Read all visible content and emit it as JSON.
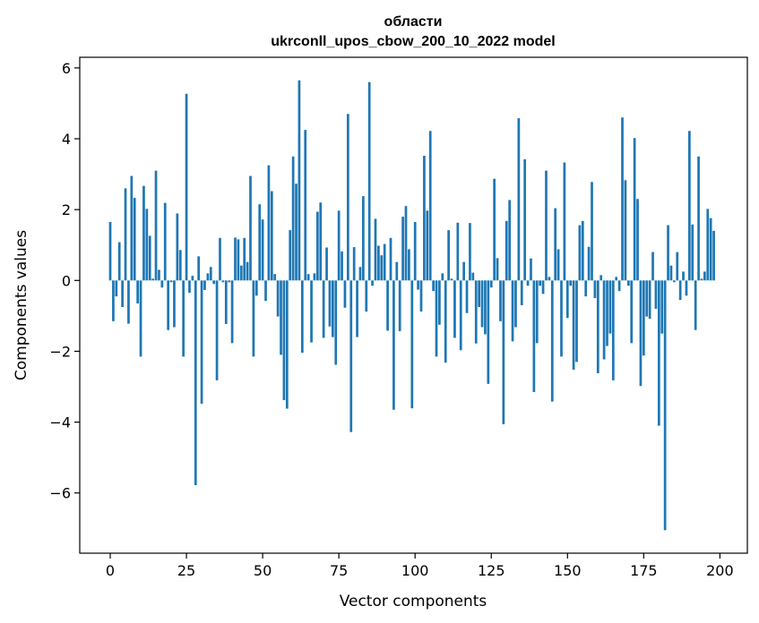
{
  "chart_data": {
    "type": "bar",
    "title_line1": "области",
    "title_line2": "ukrconll_upos_cbow_200_10_2022 model",
    "xlabel": "Vector components",
    "ylabel": "Components values",
    "xlim": [
      -10,
      209
    ],
    "ylim": [
      -7.7,
      6.3
    ],
    "xticks": [
      0,
      25,
      50,
      75,
      100,
      125,
      150,
      175,
      200
    ],
    "xtick_labels": [
      "0",
      "25",
      "50",
      "75",
      "100",
      "125",
      "150",
      "175",
      "200"
    ],
    "yticks": [
      -6,
      -4,
      -2,
      0,
      2,
      4,
      6
    ],
    "ytick_labels": [
      "−6",
      "−4",
      "−2",
      "0",
      "2",
      "4",
      "6"
    ],
    "color": "#1f77b4",
    "values": [
      1.65,
      -1.15,
      -0.45,
      1.08,
      -0.75,
      2.6,
      -1.22,
      2.95,
      2.33,
      -0.65,
      -2.15,
      2.67,
      2.02,
      1.26,
      0.05,
      3.1,
      0.3,
      -0.2,
      2.19,
      -1.4,
      -0.05,
      -1.32,
      1.89,
      0.86,
      -2.15,
      5.27,
      -0.35,
      0.13,
      -5.78,
      0.68,
      -3.48,
      -0.27,
      0.2,
      0.38,
      -0.1,
      -2.82,
      1.2,
      -0.05,
      -1.23,
      -0.05,
      -1.77,
      1.21,
      1.16,
      0.42,
      1.2,
      0.52,
      2.95,
      -2.15,
      -0.43,
      2.15,
      1.72,
      -0.58,
      3.25,
      2.52,
      0.18,
      -1.02,
      -2.1,
      -3.38,
      -3.62,
      1.42,
      3.5,
      2.73,
      5.65,
      -2.04,
      4.25,
      0.18,
      -1.75,
      0.2,
      1.94,
      2.2,
      -1.62,
      0.93,
      -1.3,
      -1.6,
      -2.38,
      1.97,
      0.82,
      -0.77,
      4.7,
      -4.28,
      0.94,
      -1.6,
      0.38,
      2.38,
      -0.88,
      5.6,
      -0.15,
      1.74,
      0.98,
      0.71,
      1.03,
      -1.42,
      1.2,
      -3.65,
      0.52,
      -1.43,
      1.8,
      2.1,
      0.88,
      -3.61,
      1.65,
      -0.26,
      -0.88,
      3.52,
      1.97,
      4.22,
      -0.3,
      -2.15,
      -1.25,
      0.2,
      -2.32,
      1.42,
      0.05,
      -1.62,
      1.63,
      -1.97,
      0.52,
      -0.92,
      1.62,
      0.22,
      -1.78,
      -0.75,
      -1.32,
      -1.52,
      -2.92,
      -0.2,
      2.87,
      0.63,
      -1.15,
      -4.06,
      1.68,
      2.27,
      -1.72,
      -1.32,
      4.58,
      -0.7,
      3.42,
      -0.15,
      0.62,
      -3.15,
      -1.77,
      -0.15,
      -0.38,
      3.1,
      0.1,
      -3.42,
      2.04,
      0.88,
      -2.15,
      3.33,
      -1.06,
      -0.15,
      -2.52,
      -2.3,
      1.56,
      1.68,
      -0.45,
      0.95,
      2.78,
      -0.5,
      -2.62,
      0.15,
      -2.23,
      -1.85,
      -1.5,
      -2.82,
      0.1,
      -0.3,
      4.6,
      2.83,
      -0.15,
      -1.77,
      4.02,
      2.3,
      -2.98,
      -2.12,
      -1.02,
      -1.08,
      0.8,
      -0.8,
      -4.1,
      -1.5,
      -7.05,
      1.56,
      0.42,
      -0.05,
      0.8,
      -0.55,
      0.25,
      -0.43,
      4.22,
      1.58,
      -1.4,
      3.5,
      0.05,
      0.25,
      2.02,
      1.76,
      1.4
    ]
  }
}
